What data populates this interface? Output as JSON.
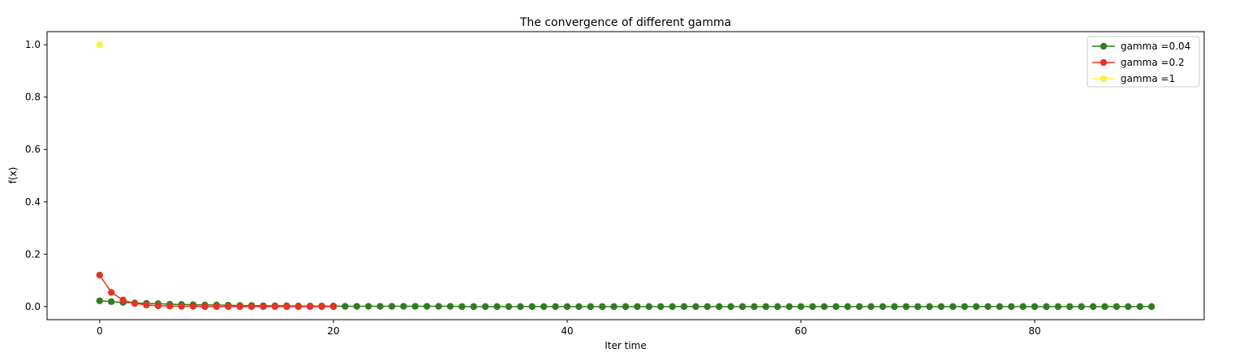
{
  "chart_data": {
    "type": "line",
    "title": "The convergence of different gamma",
    "xlabel": "Iter time",
    "ylabel": "f(x)",
    "xlim": [
      -4.5,
      94.5
    ],
    "ylim": [
      -0.05,
      1.05
    ],
    "xticks": [
      0,
      20,
      40,
      60,
      80
    ],
    "yticks": [
      0.0,
      0.2,
      0.4,
      0.6,
      0.8,
      1.0
    ],
    "ytick_labels": [
      "0.0",
      "0.2",
      "0.4",
      "0.6",
      "0.8",
      "1.0"
    ],
    "grid": false,
    "legend_position": "top-right",
    "series": [
      {
        "name": "gamma =0.04",
        "color": "#2e7d1f",
        "x": [
          0,
          1,
          2,
          3,
          4,
          5,
          6,
          7,
          8,
          9,
          10,
          11,
          12,
          13,
          14,
          15,
          16,
          17,
          18,
          19,
          20,
          21,
          22,
          23,
          24,
          25,
          26,
          27,
          28,
          29,
          30,
          31,
          32,
          33,
          34,
          35,
          36,
          37,
          38,
          39,
          40,
          41,
          42,
          43,
          44,
          45,
          46,
          47,
          48,
          49,
          50,
          51,
          52,
          53,
          54,
          55,
          56,
          57,
          58,
          59,
          60,
          61,
          62,
          63,
          64,
          65,
          66,
          67,
          68,
          69,
          70,
          71,
          72,
          73,
          74,
          75,
          76,
          77,
          78,
          79,
          80,
          81,
          82,
          83,
          84,
          85,
          86,
          87,
          88,
          89,
          90
        ],
        "y": [
          0.022,
          0.019,
          0.016,
          0.014,
          0.012,
          0.011,
          0.009,
          0.008,
          0.007,
          0.006,
          0.006,
          0.005,
          0.004,
          0.004,
          0.003,
          0.003,
          0.003,
          0.002,
          0.002,
          0.002,
          0.002,
          0.001,
          0.001,
          0.001,
          0.001,
          0.001,
          0.001,
          0.001,
          0.001,
          0.001,
          0.001,
          0.0,
          0.0,
          0.0,
          0.0,
          0.0,
          0.0,
          0.0,
          0.0,
          0.0,
          0.0,
          0.0,
          0.0,
          0.0,
          0.0,
          0.0,
          0.0,
          0.0,
          0.0,
          0.0,
          0.0,
          0.0,
          0.0,
          0.0,
          0.0,
          0.0,
          0.0,
          0.0,
          0.0,
          0.0,
          0.0,
          0.0,
          0.0,
          0.0,
          0.0,
          0.0,
          0.0,
          0.0,
          0.0,
          0.0,
          0.0,
          0.0,
          0.0,
          0.0,
          0.0,
          0.0,
          0.0,
          0.0,
          0.0,
          0.0,
          0.0,
          0.0,
          0.0,
          0.0,
          0.0,
          0.0,
          0.0,
          0.0,
          0.0,
          0.0,
          0.0
        ]
      },
      {
        "name": "gamma =0.2",
        "color": "#e53423",
        "x": [
          0,
          1,
          2,
          3,
          4,
          5,
          6,
          7,
          8,
          9,
          10,
          11,
          12,
          13,
          14,
          15,
          16,
          17,
          18,
          19,
          20
        ],
        "y": [
          0.12,
          0.054,
          0.025,
          0.012,
          0.006,
          0.003,
          0.002,
          0.001,
          0.001,
          0.0,
          0.0,
          0.0,
          0.0,
          0.0,
          0.0,
          0.0,
          0.0,
          0.0,
          0.0,
          0.0,
          0.0
        ]
      },
      {
        "name": "gamma =1",
        "color": "#f5f542",
        "x": [
          0
        ],
        "y": [
          1.0
        ]
      }
    ]
  }
}
